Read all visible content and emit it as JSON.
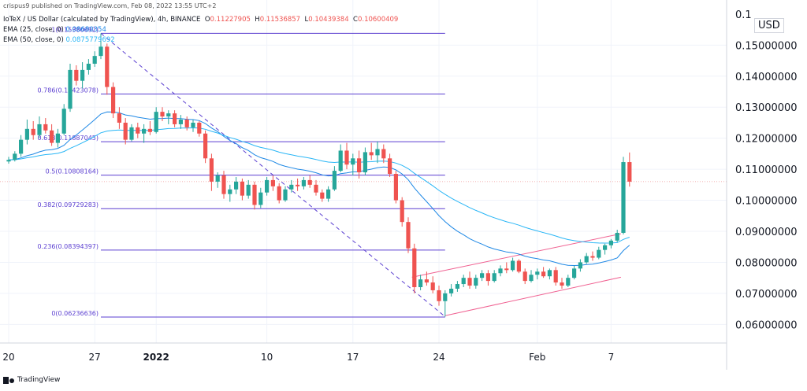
{
  "header": {
    "published": "crispus9 published on TradingView.com, Feb 08, 2022 13:55 UTC+2",
    "symbol": "IoTeX / US Dollar (calculated by TradingView), 4h, BINANCE",
    "ohlc": {
      "o_label": "O",
      "o": "0.11227905",
      "h_label": "H",
      "h": "0.11536857",
      "l_label": "L",
      "l": "0.10439384",
      "c_label": "C",
      "c": "0.10600409"
    },
    "ema25_label": "EMA (25, close, 0)",
    "ema25_value": "0.08680354",
    "ema50_label": "EMA (50, close, 0)",
    "ema50_value": "0.0875779692"
  },
  "currency": "USD",
  "footer": "TradingView",
  "colors": {
    "up": "#26a69a",
    "down": "#ef5350",
    "fib": "#5b3fd1",
    "ema25": "#1e88e5",
    "ema50": "#29b6f6",
    "channel": "#f06292"
  },
  "chart_data": {
    "type": "candlestick",
    "ylim": [
      0.054,
      0.162
    ],
    "y_ticks": [
      "0.06000000",
      "0.07000000",
      "0.08000000",
      "0.09000000",
      "0.10000000",
      "0.11000000",
      "0.12000000",
      "0.13000000",
      "0.14000000",
      "0.15000000"
    ],
    "y_tick_values": [
      0.06,
      0.07,
      0.08,
      0.09,
      0.1,
      0.11,
      0.12,
      0.13,
      0.14,
      0.15
    ],
    "top_tick_partial": "0.1",
    "top_tick_value": 0.16,
    "x_ticks": [
      "20",
      "27",
      "2022",
      "10",
      "17",
      "24",
      "Feb",
      "7"
    ],
    "x_tick_days": [
      0,
      7,
      12,
      21,
      28,
      35,
      43,
      49
    ],
    "last_price": 0.10600409,
    "fib_levels": [
      {
        "label": "0(0.06236636)",
        "value": 0.06236636
      },
      {
        "label": "0.236(0.08394397)",
        "value": 0.08394397
      },
      {
        "label": "0.382(0.09729283)",
        "value": 0.09729283
      },
      {
        "label": "0.5(0.10808164)",
        "value": 0.10808164
      },
      {
        "label": "0.618(0.11887045)",
        "value": 0.11887045
      },
      {
        "label": "0.786(0.13423078)",
        "value": 0.13423078
      },
      {
        "label": "1(0.15380692)",
        "value": 0.15380692
      }
    ],
    "fib_range_days": [
      7.5,
      35.5
    ],
    "trend_line": [
      [
        7.5,
        0.1538
      ],
      [
        35.5,
        0.0625
      ]
    ],
    "channel_upper": [
      [
        32.8,
        0.0752
      ],
      [
        49.8,
        0.0892
      ]
    ],
    "channel_lower": [
      [
        35.5,
        0.0628
      ],
      [
        49.8,
        0.0752
      ]
    ],
    "candles": [
      [
        0.0,
        0.1125,
        0.114,
        0.1118,
        0.113
      ],
      [
        0.5,
        0.113,
        0.1158,
        0.1125,
        0.115
      ],
      [
        1.0,
        0.115,
        0.121,
        0.114,
        0.1195
      ],
      [
        1.5,
        0.1195,
        0.126,
        0.118,
        0.123
      ],
      [
        2.0,
        0.123,
        0.1255,
        0.1195,
        0.121
      ],
      [
        2.5,
        0.121,
        0.127,
        0.12,
        0.1245
      ],
      [
        3.0,
        0.1245,
        0.1265,
        0.1215,
        0.1225
      ],
      [
        3.5,
        0.1225,
        0.1245,
        0.1175,
        0.1185
      ],
      [
        4.0,
        0.1185,
        0.123,
        0.117,
        0.1215
      ],
      [
        4.5,
        0.1215,
        0.131,
        0.121,
        0.1295
      ],
      [
        5.0,
        0.1295,
        0.144,
        0.1285,
        0.142
      ],
      [
        5.5,
        0.142,
        0.1435,
        0.137,
        0.1385
      ],
      [
        6.0,
        0.1385,
        0.1445,
        0.136,
        0.142
      ],
      [
        6.5,
        0.142,
        0.1455,
        0.1405,
        0.144
      ],
      [
        7.0,
        0.144,
        0.148,
        0.143,
        0.1465
      ],
      [
        7.5,
        0.1465,
        0.1538,
        0.1455,
        0.1495
      ],
      [
        8.0,
        0.1495,
        0.1505,
        0.134,
        0.1365
      ],
      [
        8.5,
        0.1365,
        0.138,
        0.1265,
        0.128
      ],
      [
        9.0,
        0.128,
        0.13,
        0.123,
        0.125
      ],
      [
        9.5,
        0.125,
        0.1265,
        0.118,
        0.1195
      ],
      [
        10.0,
        0.1195,
        0.1245,
        0.119,
        0.1235
      ],
      [
        10.5,
        0.1235,
        0.125,
        0.12,
        0.1215
      ],
      [
        11.0,
        0.1215,
        0.1245,
        0.1185,
        0.123
      ],
      [
        11.5,
        0.123,
        0.1255,
        0.121,
        0.122
      ],
      [
        12.0,
        0.122,
        0.13,
        0.1215,
        0.1285
      ],
      [
        12.5,
        0.1285,
        0.13,
        0.1255,
        0.127
      ],
      [
        13.0,
        0.127,
        0.129,
        0.1245,
        0.128
      ],
      [
        13.5,
        0.128,
        0.129,
        0.1235,
        0.1245
      ],
      [
        14.0,
        0.1245,
        0.1275,
        0.123,
        0.126
      ],
      [
        14.5,
        0.126,
        0.127,
        0.1225,
        0.1235
      ],
      [
        15.0,
        0.1235,
        0.126,
        0.122,
        0.125
      ],
      [
        15.5,
        0.125,
        0.1255,
        0.1205,
        0.1215
      ],
      [
        16.0,
        0.1215,
        0.1225,
        0.112,
        0.1135
      ],
      [
        16.5,
        0.1135,
        0.115,
        0.103,
        0.106
      ],
      [
        17.0,
        0.106,
        0.109,
        0.104,
        0.108
      ],
      [
        17.5,
        0.108,
        0.1095,
        0.1005,
        0.102
      ],
      [
        18.0,
        0.102,
        0.105,
        0.0995,
        0.1035
      ],
      [
        18.5,
        0.1035,
        0.1075,
        0.102,
        0.106
      ],
      [
        19.0,
        0.106,
        0.107,
        0.1,
        0.1015
      ],
      [
        19.5,
        0.1015,
        0.1065,
        0.1005,
        0.105
      ],
      [
        20.0,
        0.105,
        0.106,
        0.097,
        0.0985
      ],
      [
        20.5,
        0.0985,
        0.104,
        0.0975,
        0.1025
      ],
      [
        21.0,
        0.1025,
        0.1075,
        0.1015,
        0.1065
      ],
      [
        21.5,
        0.1065,
        0.108,
        0.103,
        0.1045
      ],
      [
        22.0,
        0.1045,
        0.1055,
        0.099,
        0.1
      ],
      [
        22.5,
        0.1,
        0.1045,
        0.0995,
        0.1035
      ],
      [
        23.0,
        0.1035,
        0.1065,
        0.1025,
        0.105
      ],
      [
        23.5,
        0.105,
        0.107,
        0.103,
        0.1045
      ],
      [
        24.0,
        0.1045,
        0.1075,
        0.1035,
        0.1065
      ],
      [
        24.5,
        0.1065,
        0.108,
        0.104,
        0.105
      ],
      [
        25.0,
        0.105,
        0.1065,
        0.1015,
        0.1025
      ],
      [
        25.5,
        0.1025,
        0.1035,
        0.0995,
        0.1005
      ],
      [
        26.0,
        0.1005,
        0.1045,
        0.0995,
        0.1035
      ],
      [
        26.5,
        0.1035,
        0.111,
        0.103,
        0.1095
      ],
      [
        27.0,
        0.1095,
        0.118,
        0.109,
        0.116
      ],
      [
        27.5,
        0.116,
        0.1185,
        0.11,
        0.1115
      ],
      [
        28.0,
        0.1115,
        0.115,
        0.108,
        0.1135
      ],
      [
        28.5,
        0.1135,
        0.116,
        0.107,
        0.109
      ],
      [
        29.0,
        0.109,
        0.117,
        0.108,
        0.1155
      ],
      [
        29.5,
        0.1155,
        0.1185,
        0.113,
        0.1145
      ],
      [
        30.0,
        0.1145,
        0.119,
        0.112,
        0.1165
      ],
      [
        30.5,
        0.1165,
        0.118,
        0.112,
        0.1135
      ],
      [
        31.0,
        0.1135,
        0.115,
        0.1075,
        0.1085
      ],
      [
        31.5,
        0.1085,
        0.1095,
        0.099,
        0.1
      ],
      [
        32.0,
        0.1,
        0.101,
        0.0915,
        0.093
      ],
      [
        32.5,
        0.093,
        0.0945,
        0.083,
        0.0845
      ],
      [
        33.0,
        0.0845,
        0.086,
        0.07,
        0.072
      ],
      [
        33.5,
        0.072,
        0.076,
        0.071,
        0.0745
      ],
      [
        34.0,
        0.0745,
        0.077,
        0.0725,
        0.0735
      ],
      [
        34.5,
        0.0735,
        0.0755,
        0.07,
        0.071
      ],
      [
        35.0,
        0.071,
        0.0725,
        0.066,
        0.0675
      ],
      [
        35.5,
        0.0675,
        0.071,
        0.0625,
        0.07
      ],
      [
        36.0,
        0.07,
        0.073,
        0.069,
        0.0715
      ],
      [
        36.5,
        0.0715,
        0.074,
        0.0705,
        0.073
      ],
      [
        37.0,
        0.073,
        0.076,
        0.072,
        0.075
      ],
      [
        37.5,
        0.075,
        0.077,
        0.0715,
        0.0725
      ],
      [
        38.0,
        0.0725,
        0.076,
        0.0715,
        0.075
      ],
      [
        38.5,
        0.075,
        0.0775,
        0.074,
        0.0765
      ],
      [
        39.0,
        0.0765,
        0.0775,
        0.0725,
        0.074
      ],
      [
        39.5,
        0.074,
        0.0775,
        0.0735,
        0.0765
      ],
      [
        40.0,
        0.0765,
        0.079,
        0.0755,
        0.078
      ],
      [
        40.5,
        0.078,
        0.08,
        0.0765,
        0.0775
      ],
      [
        41.0,
        0.0775,
        0.0815,
        0.077,
        0.0805
      ],
      [
        41.5,
        0.0805,
        0.081,
        0.0765,
        0.077
      ],
      [
        42.0,
        0.077,
        0.078,
        0.073,
        0.074
      ],
      [
        42.5,
        0.074,
        0.0775,
        0.0735,
        0.076
      ],
      [
        43.0,
        0.076,
        0.078,
        0.0745,
        0.077
      ],
      [
        43.5,
        0.077,
        0.0785,
        0.075,
        0.0755
      ],
      [
        44.0,
        0.0755,
        0.078,
        0.0745,
        0.0775
      ],
      [
        44.5,
        0.0775,
        0.0785,
        0.0725,
        0.0735
      ],
      [
        45.0,
        0.0735,
        0.075,
        0.0715,
        0.0725
      ],
      [
        45.5,
        0.0725,
        0.076,
        0.072,
        0.075
      ],
      [
        46.0,
        0.075,
        0.079,
        0.0745,
        0.078
      ],
      [
        46.5,
        0.078,
        0.081,
        0.077,
        0.08
      ],
      [
        47.0,
        0.08,
        0.083,
        0.0795,
        0.082
      ],
      [
        47.5,
        0.082,
        0.0835,
        0.0805,
        0.0815
      ],
      [
        48.0,
        0.0815,
        0.085,
        0.081,
        0.084
      ],
      [
        48.5,
        0.084,
        0.086,
        0.0825,
        0.0855
      ],
      [
        49.0,
        0.0855,
        0.0875,
        0.0845,
        0.087
      ],
      [
        49.5,
        0.087,
        0.0905,
        0.0865,
        0.0895
      ],
      [
        50.0,
        0.0895,
        0.114,
        0.089,
        0.1123
      ],
      [
        50.5,
        0.1123,
        0.1154,
        0.1044,
        0.106
      ]
    ]
  }
}
